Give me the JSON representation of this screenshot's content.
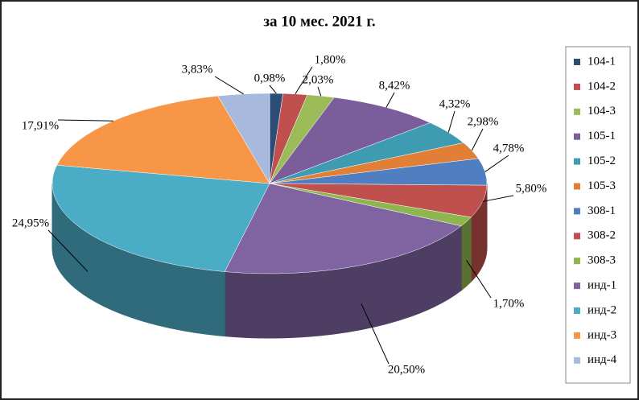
{
  "chart_data": {
    "type": "pie3d",
    "title": "за 10 мес. 2021 г.",
    "categories": [
      "104-1",
      "104-2",
      "104-3",
      "105-1",
      "105-2",
      "105-3",
      "308-1",
      "308-2",
      "308-3",
      "инд-1",
      "инд-2",
      "инд-3",
      "инд-4"
    ],
    "values": [
      0.98,
      1.8,
      2.03,
      8.42,
      4.32,
      2.98,
      4.78,
      5.8,
      1.7,
      20.5,
      24.95,
      17.91,
      3.83
    ],
    "value_labels": [
      "0,98%",
      "1,80%",
      "2,03%",
      "8,42%",
      "4,32%",
      "2,98%",
      "4,78%",
      "5,80%",
      "1,70%",
      "20,50%",
      "24,95%",
      "17,91%",
      "3,83%"
    ],
    "colors": [
      "#2c4d75",
      "#c0504d",
      "#9bbb59",
      "#7b5d9c",
      "#3f9bb2",
      "#e07f35",
      "#4f7fc0",
      "#c0504d",
      "#8fb54f",
      "#8064a2",
      "#4bacc6",
      "#f79646",
      "#a7b9dc"
    ],
    "legend": "right"
  }
}
